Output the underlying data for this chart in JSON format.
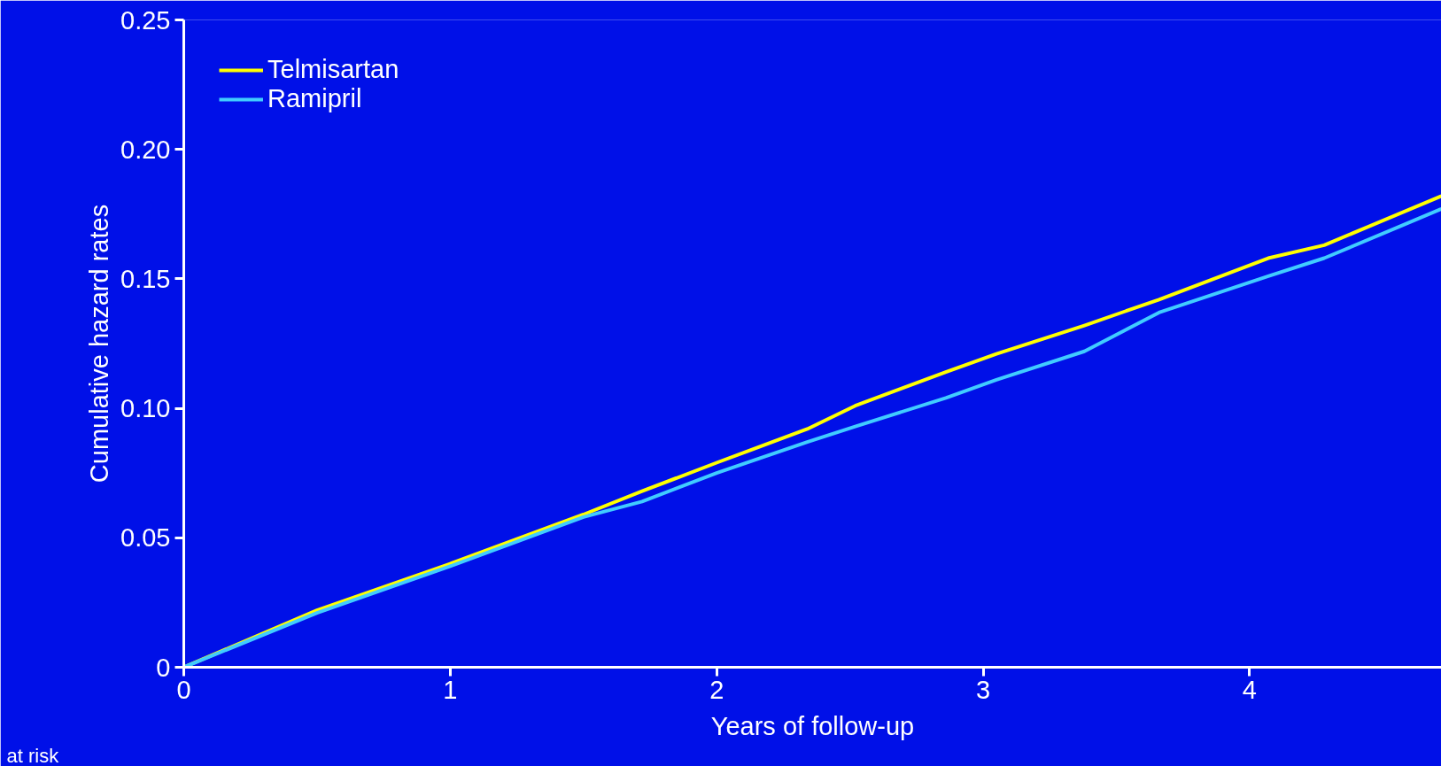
{
  "chart_data": {
    "type": "line",
    "xlabel": "Years of follow-up",
    "ylabel": "Cumulative hazard rates",
    "annotations": [
      "at risk"
    ],
    "xlim": [
      0,
      4.72
    ],
    "xticks": [
      0,
      1,
      2,
      3,
      4
    ],
    "ylim": [
      0,
      0.25
    ],
    "yticks": [
      {
        "value": 0,
        "label": "0"
      },
      {
        "value": 0.05,
        "label": "0.05"
      },
      {
        "value": 0.1,
        "label": "0.10"
      },
      {
        "value": 0.15,
        "label": "0.15"
      },
      {
        "value": 0.2,
        "label": "0.20"
      },
      {
        "value": 0.25,
        "label": "0.25"
      }
    ],
    "x": [
      0,
      0.5,
      1,
      1.5,
      1.72,
      2,
      2.34,
      2.52,
      2.86,
      3.05,
      3.38,
      3.66,
      4.07,
      4.28,
      4.72
    ],
    "series": [
      {
        "name": "Telmisartan",
        "color": "#ffff00",
        "values": [
          0,
          0.022,
          0.04,
          0.059,
          0.068,
          0.079,
          0.092,
          0.101,
          0.114,
          0.121,
          0.132,
          0.142,
          0.158,
          0.163,
          0.182
        ]
      },
      {
        "name": "Ramipril",
        "color": "#40ccff",
        "values": [
          0,
          0.021,
          0.039,
          0.058,
          0.064,
          0.075,
          0.087,
          0.093,
          0.104,
          0.111,
          0.122,
          0.137,
          0.151,
          0.158,
          0.177
        ]
      }
    ],
    "grid": false,
    "legend": "top left",
    "marker": "none",
    "line_style": "solid"
  }
}
